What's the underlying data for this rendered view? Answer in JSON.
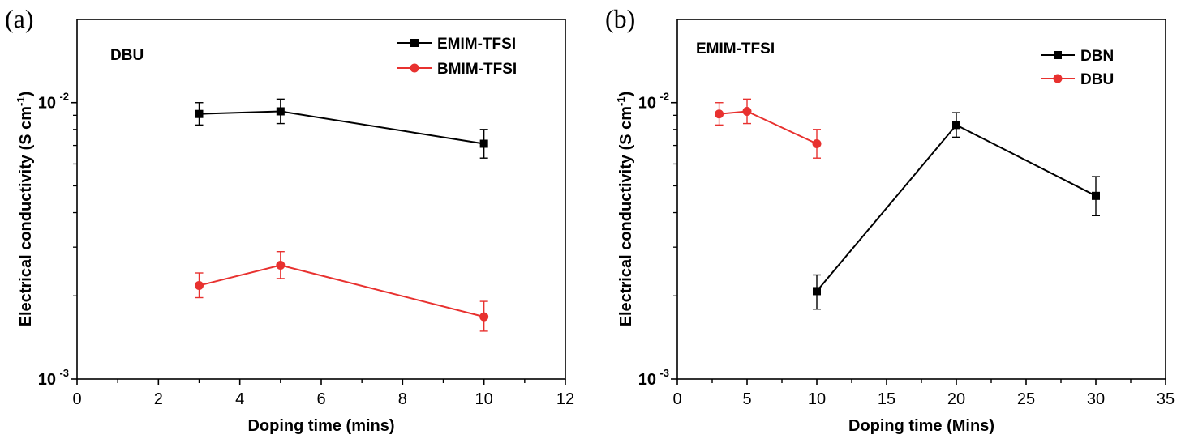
{
  "chart_data": [
    {
      "panel_label": "(a)",
      "type": "line",
      "annotation": "DBU",
      "xlabel": "Doping time (mins)",
      "ylabel": "Electrical conductivity (S cm",
      "ylabel_unit_sup": "-1",
      "ylabel_close": ")",
      "xlim": [
        0,
        12
      ],
      "ylim": [
        0.001,
        0.02
      ],
      "yscale": "log",
      "xticks": [
        0,
        2,
        4,
        6,
        8,
        10,
        12
      ],
      "yticks": [
        {
          "value": 0.001,
          "base": "10",
          "exp": "-3"
        },
        {
          "value": 0.01,
          "base": "10",
          "exp": "-2"
        }
      ],
      "legend_position": "top-right",
      "series": [
        {
          "name": "EMIM-TFSI",
          "color": "#000000",
          "marker": "square",
          "points": [
            {
              "x": 3,
              "y": 0.0091,
              "err_low": 0.0083,
              "err_high": 0.01
            },
            {
              "x": 5,
              "y": 0.0093,
              "err_low": 0.0084,
              "err_high": 0.0103
            },
            {
              "x": 10,
              "y": 0.0071,
              "err_low": 0.0063,
              "err_high": 0.008
            }
          ]
        },
        {
          "name": "BMIM-TFSI",
          "color": "#e8312f",
          "marker": "circle",
          "points": [
            {
              "x": 3,
              "y": 0.00218,
              "err_low": 0.00197,
              "err_high": 0.00242
            },
            {
              "x": 5,
              "y": 0.00258,
              "err_low": 0.00231,
              "err_high": 0.00289
            },
            {
              "x": 10,
              "y": 0.00168,
              "err_low": 0.00149,
              "err_high": 0.00191
            }
          ]
        }
      ]
    },
    {
      "panel_label": "(b)",
      "type": "line",
      "annotation": "EMIM-TFSI",
      "xlabel": "Doping time (Mins)",
      "ylabel": "Electrical conductivity (S cm",
      "ylabel_unit_sup": "-1",
      "ylabel_close": ")",
      "xlim": [
        0,
        35
      ],
      "ylim": [
        0.001,
        0.02
      ],
      "yscale": "log",
      "xticks": [
        0,
        5,
        10,
        15,
        20,
        25,
        30,
        35
      ],
      "yticks": [
        {
          "value": 0.001,
          "base": "10",
          "exp": "-3"
        },
        {
          "value": 0.01,
          "base": "10",
          "exp": "-2"
        }
      ],
      "legend_position": "top-right",
      "series": [
        {
          "name": "DBN",
          "color": "#000000",
          "marker": "square",
          "points": [
            {
              "x": 10,
              "y": 0.00208,
              "err_low": 0.00179,
              "err_high": 0.00238
            },
            {
              "x": 20,
              "y": 0.0083,
              "err_low": 0.0075,
              "err_high": 0.0092
            },
            {
              "x": 30,
              "y": 0.0046,
              "err_low": 0.0039,
              "err_high": 0.0054
            }
          ]
        },
        {
          "name": "DBU",
          "color": "#e8312f",
          "marker": "circle",
          "points": [
            {
              "x": 3,
              "y": 0.0091,
              "err_low": 0.0083,
              "err_high": 0.01
            },
            {
              "x": 5,
              "y": 0.0093,
              "err_low": 0.0084,
              "err_high": 0.0103
            },
            {
              "x": 10,
              "y": 0.0071,
              "err_low": 0.0063,
              "err_high": 0.008
            }
          ]
        }
      ]
    }
  ]
}
